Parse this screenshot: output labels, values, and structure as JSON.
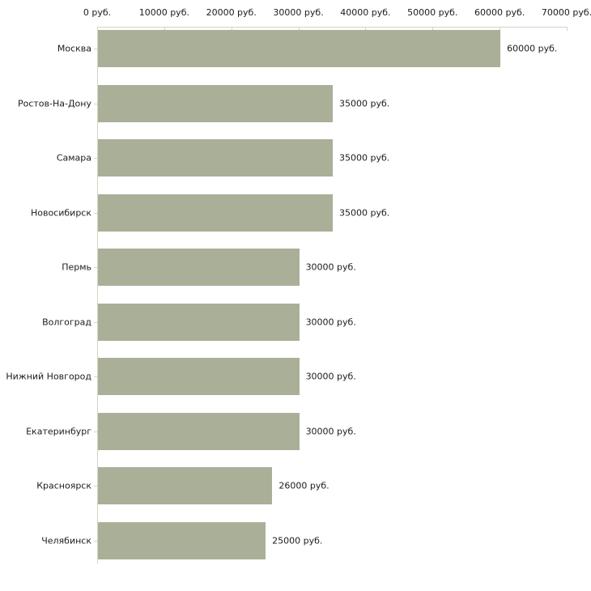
{
  "chart_data": {
    "type": "bar",
    "orientation": "horizontal",
    "title": "",
    "xlabel": "",
    "ylabel": "",
    "categories": [
      "Москва",
      "Ростов-На-Дону",
      "Самара",
      "Новосибирск",
      "Пермь",
      "Волгоград",
      "Нижний Новгород",
      "Екатеринбург",
      "Красноярск",
      "Челябинск"
    ],
    "values": [
      60000,
      35000,
      35000,
      35000,
      30000,
      30000,
      30000,
      30000,
      26000,
      25000
    ],
    "value_labels": [
      "60000 руб.",
      "35000 руб.",
      "35000 руб.",
      "35000 руб.",
      "30000 руб.",
      "30000 руб.",
      "30000 руб.",
      "30000 руб.",
      "26000 руб.",
      "25000 руб."
    ],
    "x_ticks": [
      0,
      10000,
      20000,
      30000,
      40000,
      50000,
      60000,
      70000
    ],
    "x_tick_labels": [
      "0 руб.",
      "10000 руб.",
      "20000 руб.",
      "30000 руб.",
      "40000 руб.",
      "50000 руб.",
      "60000 руб.",
      "70000 руб."
    ],
    "xlim": [
      0,
      70000
    ],
    "grid": false,
    "legend": false,
    "colors": {
      "bar": "#aab098",
      "axis": "#d2d5c3",
      "text": "#1c1c1c",
      "background": "#ffffff"
    }
  }
}
